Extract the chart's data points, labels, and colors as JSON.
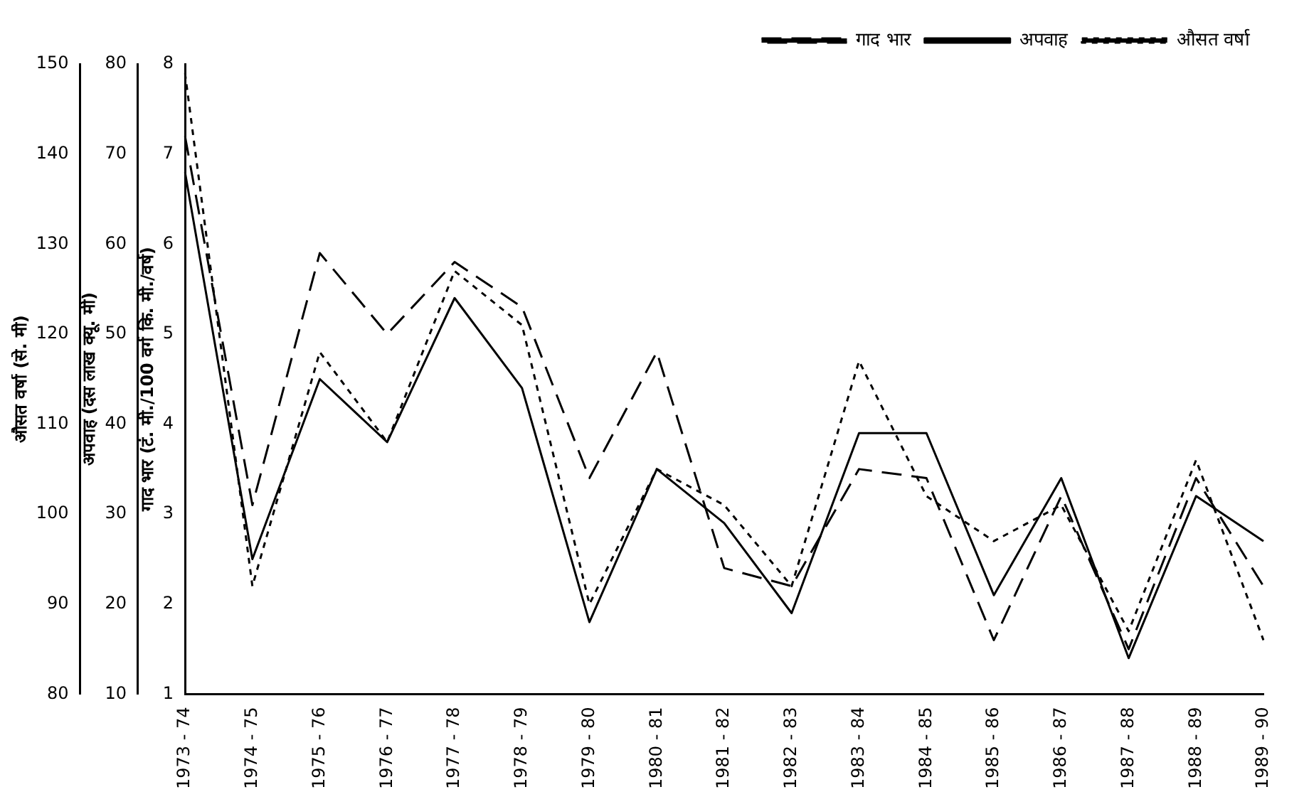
{
  "chart_data": {
    "type": "line",
    "categories": [
      "1973 - 74",
      "1974 - 75",
      "1975 - 76",
      "1976 - 77",
      "1977 - 78",
      "1978 - 79",
      "1979 - 80",
      "1980 - 81",
      "1981 - 82",
      "1982 - 83",
      "1983 - 84",
      "1984 - 85",
      "1985 - 86",
      "1986 - 87",
      "1987 - 88",
      "1988 - 89",
      "1989 - 90"
    ],
    "series": [
      {
        "name": "गाद भार",
        "color": "#000000",
        "line_style": "dashed",
        "axis": "y",
        "values": [
          7.2,
          3.1,
          5.9,
          5.0,
          5.8,
          5.3,
          3.4,
          4.8,
          2.4,
          2.2,
          3.5,
          3.4,
          1.6,
          3.2,
          1.5,
          3.4,
          2.2
        ]
      },
      {
        "name": "अपवाह",
        "color": "#000000",
        "line_style": "solid",
        "axis": "y2",
        "values": [
          68,
          25,
          45,
          38,
          54,
          44,
          18,
          35,
          29,
          19,
          39,
          39,
          21,
          34,
          14,
          32,
          27
        ]
      },
      {
        "name": "औसत वर्षा",
        "color": "#000000",
        "line_style": "dotted",
        "axis": "y3",
        "values": [
          149,
          92,
          118,
          108,
          127,
          121,
          90,
          105,
          101,
          92,
          117,
          102,
          97,
          101,
          87,
          106,
          86
        ]
      }
    ],
    "ylabel": "गाद भार (टं. मी./100 वर्ग कि. मी./वर्ष)",
    "ylim": [
      1,
      8
    ],
    "yticks": [
      1,
      2,
      3,
      4,
      5,
      6,
      7,
      8
    ],
    "y2label": "अपवाह (दस लाख क्यू. मी)",
    "y2lim": [
      10,
      80
    ],
    "y2ticks": [
      10,
      20,
      30,
      40,
      50,
      60,
      70,
      80
    ],
    "y3label": "औसत वर्षा (से. मी)",
    "y3lim": [
      80,
      150
    ],
    "y3ticks": [
      80,
      90,
      100,
      110,
      120,
      130,
      140,
      150
    ],
    "legend": "top right",
    "grid": false,
    "marker": "none"
  }
}
